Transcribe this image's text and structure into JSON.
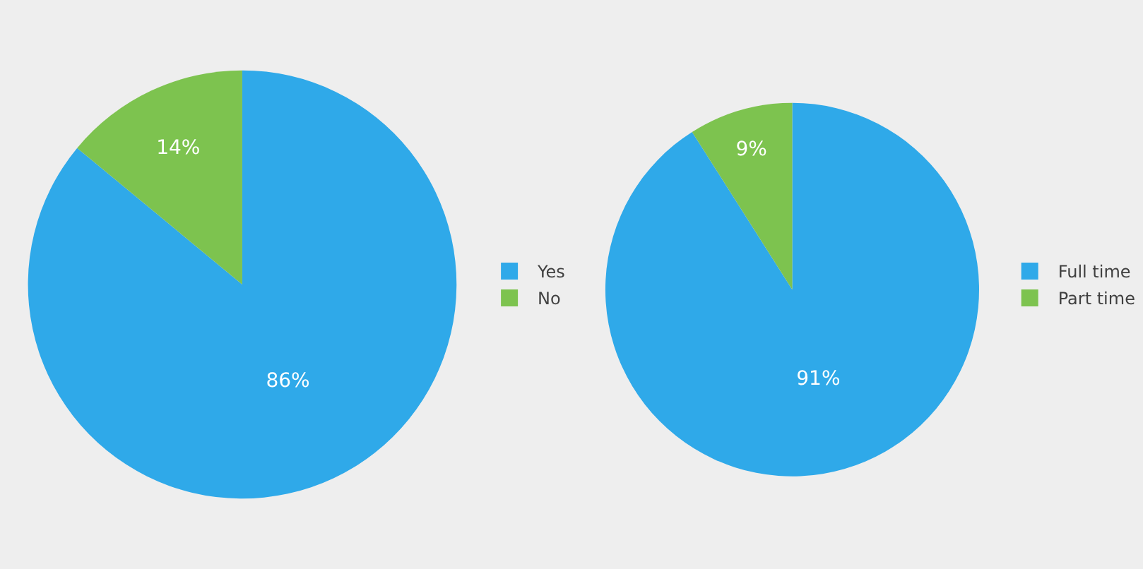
{
  "chart_data": [
    {
      "type": "pie",
      "categories": [
        "Yes",
        "No"
      ],
      "values": [
        86,
        14
      ],
      "colors": [
        "#2fa9e9",
        "#7dc34f"
      ],
      "value_labels": [
        "86%",
        "14%"
      ],
      "legend": "right"
    },
    {
      "type": "pie",
      "categories": [
        "Full time",
        "Part time"
      ],
      "values": [
        91,
        9
      ],
      "colors": [
        "#2fa9e9",
        "#7dc34f"
      ],
      "value_labels": [
        "91%",
        "9%"
      ],
      "legend": "right"
    }
  ]
}
